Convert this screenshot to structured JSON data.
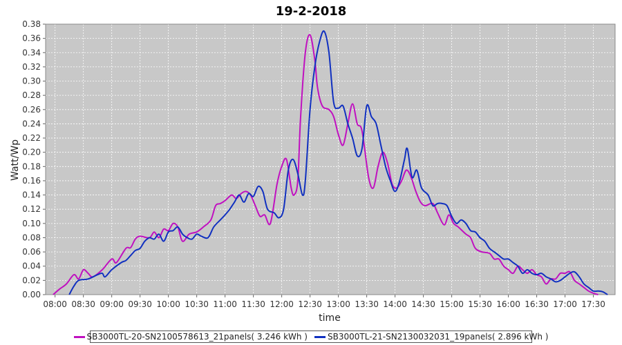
{
  "chart_data": {
    "type": "line",
    "title": "19-2-2018",
    "xlabel": "time",
    "ylabel": "Watt/Wp",
    "ylim": [
      0,
      0.38
    ],
    "yticks": [
      "0.00",
      "0.02",
      "0.04",
      "0.06",
      "0.08",
      "0.10",
      "0.12",
      "0.14",
      "0.16",
      "0.18",
      "0.20",
      "0.22",
      "0.24",
      "0.26",
      "0.28",
      "0.30",
      "0.32",
      "0.34",
      "0.36",
      "0.38"
    ],
    "xlim": [
      "07:50",
      "17:53"
    ],
    "xticks": [
      "08:00",
      "08:30",
      "09:00",
      "09:30",
      "10:00",
      "10:30",
      "11:00",
      "11:30",
      "12:00",
      "12:30",
      "13:00",
      "13:30",
      "14:00",
      "14:30",
      "15:00",
      "15:30",
      "16:00",
      "16:30",
      "17:00",
      "17:30"
    ],
    "grid": true,
    "background": "#c8c8c8",
    "legend_position": "bottom",
    "series": [
      {
        "name": "SB3000TL-20-SN2100578613_21panels( 3.246 kWh )",
        "color": "#c010c0",
        "points": [
          [
            "07:58",
            0.0
          ],
          [
            "08:05",
            0.008
          ],
          [
            "08:12",
            0.015
          ],
          [
            "08:20",
            0.028
          ],
          [
            "08:25",
            0.022
          ],
          [
            "08:30",
            0.035
          ],
          [
            "08:35",
            0.03
          ],
          [
            "08:40",
            0.025
          ],
          [
            "08:50",
            0.035
          ],
          [
            "09:00",
            0.05
          ],
          [
            "09:05",
            0.045
          ],
          [
            "09:15",
            0.065
          ],
          [
            "09:20",
            0.066
          ],
          [
            "09:25",
            0.078
          ],
          [
            "09:30",
            0.082
          ],
          [
            "09:40",
            0.08
          ],
          [
            "09:45",
            0.088
          ],
          [
            "09:50",
            0.08
          ],
          [
            "09:55",
            0.092
          ],
          [
            "10:00",
            0.09
          ],
          [
            "10:05",
            0.1
          ],
          [
            "10:10",
            0.095
          ],
          [
            "10:15",
            0.075
          ],
          [
            "10:22",
            0.085
          ],
          [
            "10:30",
            0.088
          ],
          [
            "10:37",
            0.095
          ],
          [
            "10:45",
            0.105
          ],
          [
            "10:50",
            0.125
          ],
          [
            "10:55",
            0.128
          ],
          [
            "11:00",
            0.132
          ],
          [
            "11:07",
            0.14
          ],
          [
            "11:12",
            0.135
          ],
          [
            "11:17",
            0.142
          ],
          [
            "11:22",
            0.145
          ],
          [
            "11:27",
            0.14
          ],
          [
            "11:32",
            0.125
          ],
          [
            "11:37",
            0.11
          ],
          [
            "11:42",
            0.112
          ],
          [
            "11:48",
            0.1
          ],
          [
            "11:55",
            0.155
          ],
          [
            "12:00",
            0.18
          ],
          [
            "12:05",
            0.19
          ],
          [
            "12:10",
            0.15
          ],
          [
            "12:13",
            0.14
          ],
          [
            "12:17",
            0.16
          ],
          [
            "12:20",
            0.25
          ],
          [
            "12:25",
            0.34
          ],
          [
            "12:30",
            0.365
          ],
          [
            "12:35",
            0.33
          ],
          [
            "12:38",
            0.29
          ],
          [
            "12:43",
            0.265
          ],
          [
            "12:50",
            0.26
          ],
          [
            "12:55",
            0.25
          ],
          [
            "13:00",
            0.225
          ],
          [
            "13:05",
            0.21
          ],
          [
            "13:10",
            0.24
          ],
          [
            "13:15",
            0.268
          ],
          [
            "13:20",
            0.24
          ],
          [
            "13:25",
            0.23
          ],
          [
            "13:32",
            0.165
          ],
          [
            "13:37",
            0.15
          ],
          [
            "13:42",
            0.18
          ],
          [
            "13:47",
            0.2
          ],
          [
            "13:52",
            0.185
          ],
          [
            "13:57",
            0.155
          ],
          [
            "14:02",
            0.15
          ],
          [
            "14:07",
            0.16
          ],
          [
            "14:12",
            0.175
          ],
          [
            "14:17",
            0.165
          ],
          [
            "14:22",
            0.145
          ],
          [
            "14:27",
            0.13
          ],
          [
            "14:32",
            0.125
          ],
          [
            "14:40",
            0.128
          ],
          [
            "14:45",
            0.115
          ],
          [
            "14:52",
            0.098
          ],
          [
            "14:57",
            0.112
          ],
          [
            "15:02",
            0.1
          ],
          [
            "15:07",
            0.095
          ],
          [
            "15:15",
            0.085
          ],
          [
            "15:20",
            0.08
          ],
          [
            "15:25",
            0.065
          ],
          [
            "15:32",
            0.06
          ],
          [
            "15:40",
            0.058
          ],
          [
            "15:45",
            0.05
          ],
          [
            "15:50",
            0.05
          ],
          [
            "15:55",
            0.04
          ],
          [
            "16:00",
            0.035
          ],
          [
            "16:05",
            0.03
          ],
          [
            "16:10",
            0.04
          ],
          [
            "16:15",
            0.035
          ],
          [
            "16:20",
            0.03
          ],
          [
            "16:25",
            0.035
          ],
          [
            "16:30",
            0.028
          ],
          [
            "16:35",
            0.025
          ],
          [
            "16:40",
            0.015
          ],
          [
            "16:45",
            0.022
          ],
          [
            "16:50",
            0.022
          ],
          [
            "16:55",
            0.03
          ],
          [
            "17:00",
            0.03
          ],
          [
            "17:05",
            0.032
          ],
          [
            "17:10",
            0.02
          ],
          [
            "17:15",
            0.015
          ],
          [
            "17:20",
            0.01
          ],
          [
            "17:25",
            0.005
          ],
          [
            "17:30",
            0.002
          ],
          [
            "17:35",
            0.0
          ]
        ]
      },
      {
        "name": "SB3000TL-21-SN2130032031_19panels( 2.896 kWh )",
        "color": "#1030c0",
        "points": [
          [
            "08:15",
            0.0
          ],
          [
            "08:20",
            0.012
          ],
          [
            "08:25",
            0.02
          ],
          [
            "08:35",
            0.022
          ],
          [
            "08:45",
            0.028
          ],
          [
            "08:50",
            0.03
          ],
          [
            "08:53",
            0.025
          ],
          [
            "09:00",
            0.035
          ],
          [
            "09:10",
            0.045
          ],
          [
            "09:15",
            0.048
          ],
          [
            "09:20",
            0.055
          ],
          [
            "09:25",
            0.062
          ],
          [
            "09:30",
            0.065
          ],
          [
            "09:35",
            0.075
          ],
          [
            "09:40",
            0.08
          ],
          [
            "09:45",
            0.078
          ],
          [
            "09:50",
            0.085
          ],
          [
            "09:55",
            0.075
          ],
          [
            "10:00",
            0.088
          ],
          [
            "10:05",
            0.09
          ],
          [
            "10:10",
            0.095
          ],
          [
            "10:15",
            0.085
          ],
          [
            "10:20",
            0.08
          ],
          [
            "10:25",
            0.078
          ],
          [
            "10:30",
            0.085
          ],
          [
            "10:35",
            0.082
          ],
          [
            "10:42",
            0.08
          ],
          [
            "10:48",
            0.095
          ],
          [
            "10:55",
            0.105
          ],
          [
            "11:00",
            0.112
          ],
          [
            "11:05",
            0.12
          ],
          [
            "11:10",
            0.13
          ],
          [
            "11:15",
            0.14
          ],
          [
            "11:20",
            0.13
          ],
          [
            "11:25",
            0.142
          ],
          [
            "11:30",
            0.138
          ],
          [
            "11:35",
            0.152
          ],
          [
            "11:40",
            0.145
          ],
          [
            "11:45",
            0.12
          ],
          [
            "11:52",
            0.115
          ],
          [
            "11:57",
            0.108
          ],
          [
            "12:02",
            0.12
          ],
          [
            "12:07",
            0.175
          ],
          [
            "12:12",
            0.19
          ],
          [
            "12:17",
            0.17
          ],
          [
            "12:22",
            0.14
          ],
          [
            "12:25",
            0.16
          ],
          [
            "12:30",
            0.26
          ],
          [
            "12:35",
            0.32
          ],
          [
            "12:40",
            0.355
          ],
          [
            "12:45",
            0.37
          ],
          [
            "12:50",
            0.34
          ],
          [
            "12:55",
            0.27
          ],
          [
            "13:00",
            0.262
          ],
          [
            "13:05",
            0.265
          ],
          [
            "13:10",
            0.24
          ],
          [
            "13:15",
            0.22
          ],
          [
            "13:20",
            0.195
          ],
          [
            "13:25",
            0.205
          ],
          [
            "13:30",
            0.265
          ],
          [
            "13:35",
            0.25
          ],
          [
            "13:40",
            0.24
          ],
          [
            "13:45",
            0.21
          ],
          [
            "13:50",
            0.18
          ],
          [
            "13:55",
            0.16
          ],
          [
            "14:00",
            0.145
          ],
          [
            "14:05",
            0.16
          ],
          [
            "14:10",
            0.19
          ],
          [
            "14:13",
            0.205
          ],
          [
            "14:18",
            0.165
          ],
          [
            "14:23",
            0.175
          ],
          [
            "14:28",
            0.15
          ],
          [
            "14:35",
            0.14
          ],
          [
            "14:40",
            0.125
          ],
          [
            "14:45",
            0.128
          ],
          [
            "14:50",
            0.128
          ],
          [
            "14:55",
            0.125
          ],
          [
            "15:00",
            0.11
          ],
          [
            "15:05",
            0.1
          ],
          [
            "15:10",
            0.105
          ],
          [
            "15:15",
            0.1
          ],
          [
            "15:20",
            0.09
          ],
          [
            "15:25",
            0.088
          ],
          [
            "15:30",
            0.08
          ],
          [
            "15:35",
            0.075
          ],
          [
            "15:40",
            0.065
          ],
          [
            "15:45",
            0.06
          ],
          [
            "15:50",
            0.055
          ],
          [
            "15:55",
            0.05
          ],
          [
            "16:00",
            0.05
          ],
          [
            "16:05",
            0.045
          ],
          [
            "16:10",
            0.04
          ],
          [
            "16:15",
            0.03
          ],
          [
            "16:20",
            0.035
          ],
          [
            "16:25",
            0.03
          ],
          [
            "16:30",
            0.028
          ],
          [
            "16:35",
            0.03
          ],
          [
            "16:40",
            0.025
          ],
          [
            "16:45",
            0.022
          ],
          [
            "16:50",
            0.018
          ],
          [
            "16:55",
            0.02
          ],
          [
            "17:00",
            0.025
          ],
          [
            "17:05",
            0.03
          ],
          [
            "17:10",
            0.032
          ],
          [
            "17:15",
            0.025
          ],
          [
            "17:20",
            0.015
          ],
          [
            "17:25",
            0.01
          ],
          [
            "17:30",
            0.005
          ],
          [
            "17:35",
            0.005
          ],
          [
            "17:40",
            0.004
          ],
          [
            "17:45",
            0.0
          ]
        ]
      }
    ]
  }
}
